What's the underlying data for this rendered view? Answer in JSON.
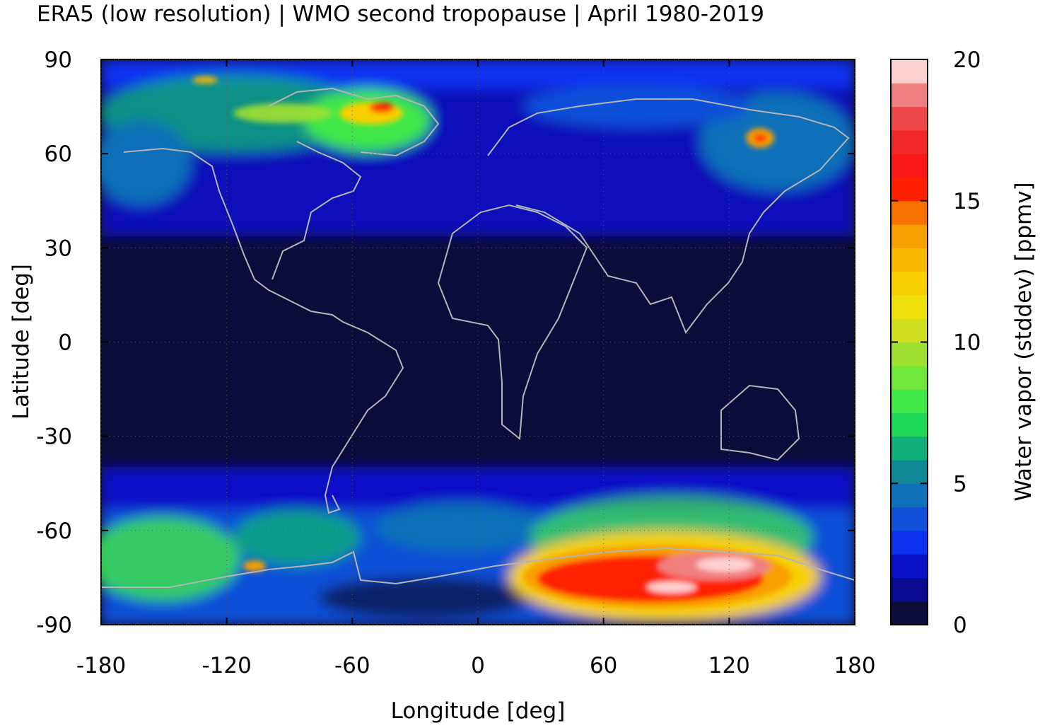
{
  "title": "ERA5 (low resolution) | WMO second tropopause | April 1980-2019",
  "chart_data": {
    "type": "heatmap",
    "title": "ERA5 (low resolution) | WMO second tropopause | April 1980-2019",
    "xlabel": "Longitude [deg]",
    "ylabel": "Latitude [deg]",
    "colorbar_label": "Water vapor (stddev) [ppmv]",
    "xlim": [
      -180,
      180
    ],
    "ylim": [
      -90,
      90
    ],
    "xticks": [
      -180,
      -120,
      -60,
      0,
      60,
      120,
      180
    ],
    "yticks": [
      90,
      60,
      30,
      0,
      -30,
      -60,
      -90
    ],
    "colorbar_range": [
      0,
      20
    ],
    "colorbar_ticks": [
      20,
      15,
      10,
      5,
      0
    ],
    "colorbar_colors": [
      "#0c0c3a",
      "#0a0a90",
      "#0a10c8",
      "#0c30f0",
      "#1050d8",
      "#1070b8",
      "#108898",
      "#10b078",
      "#20d858",
      "#40e848",
      "#70e838",
      "#a0e030",
      "#d0e020",
      "#f0e010",
      "#f8d000",
      "#f8b800",
      "#f8a000",
      "#f87000",
      "#ff2000",
      "#f81818",
      "#f02828",
      "#f04848",
      "#f08080",
      "#ffd0d0"
    ],
    "background_value_color": "#0c0c3a",
    "features": [
      {
        "name": "northern-high-latitude-band",
        "lat_range": [
          35,
          90
        ],
        "level": "2-8 ppmv",
        "peaks": [
          {
            "lon": -40,
            "lat": 75,
            "value": 15
          },
          {
            "lon": 130,
            "lat": 65,
            "value": 16
          }
        ]
      },
      {
        "name": "southern-high-latitude-band",
        "lat_range": [
          -90,
          -40
        ],
        "level": "2-10 ppmv"
      },
      {
        "name": "antarctic-maximum",
        "lon_range": [
          30,
          160
        ],
        "lat_range": [
          -85,
          -65
        ],
        "level": "15-20 ppmv",
        "peak": {
          "lon": 110,
          "lat": -75,
          "value": 20
        }
      }
    ],
    "coastlines": "gray",
    "grid": true
  }
}
